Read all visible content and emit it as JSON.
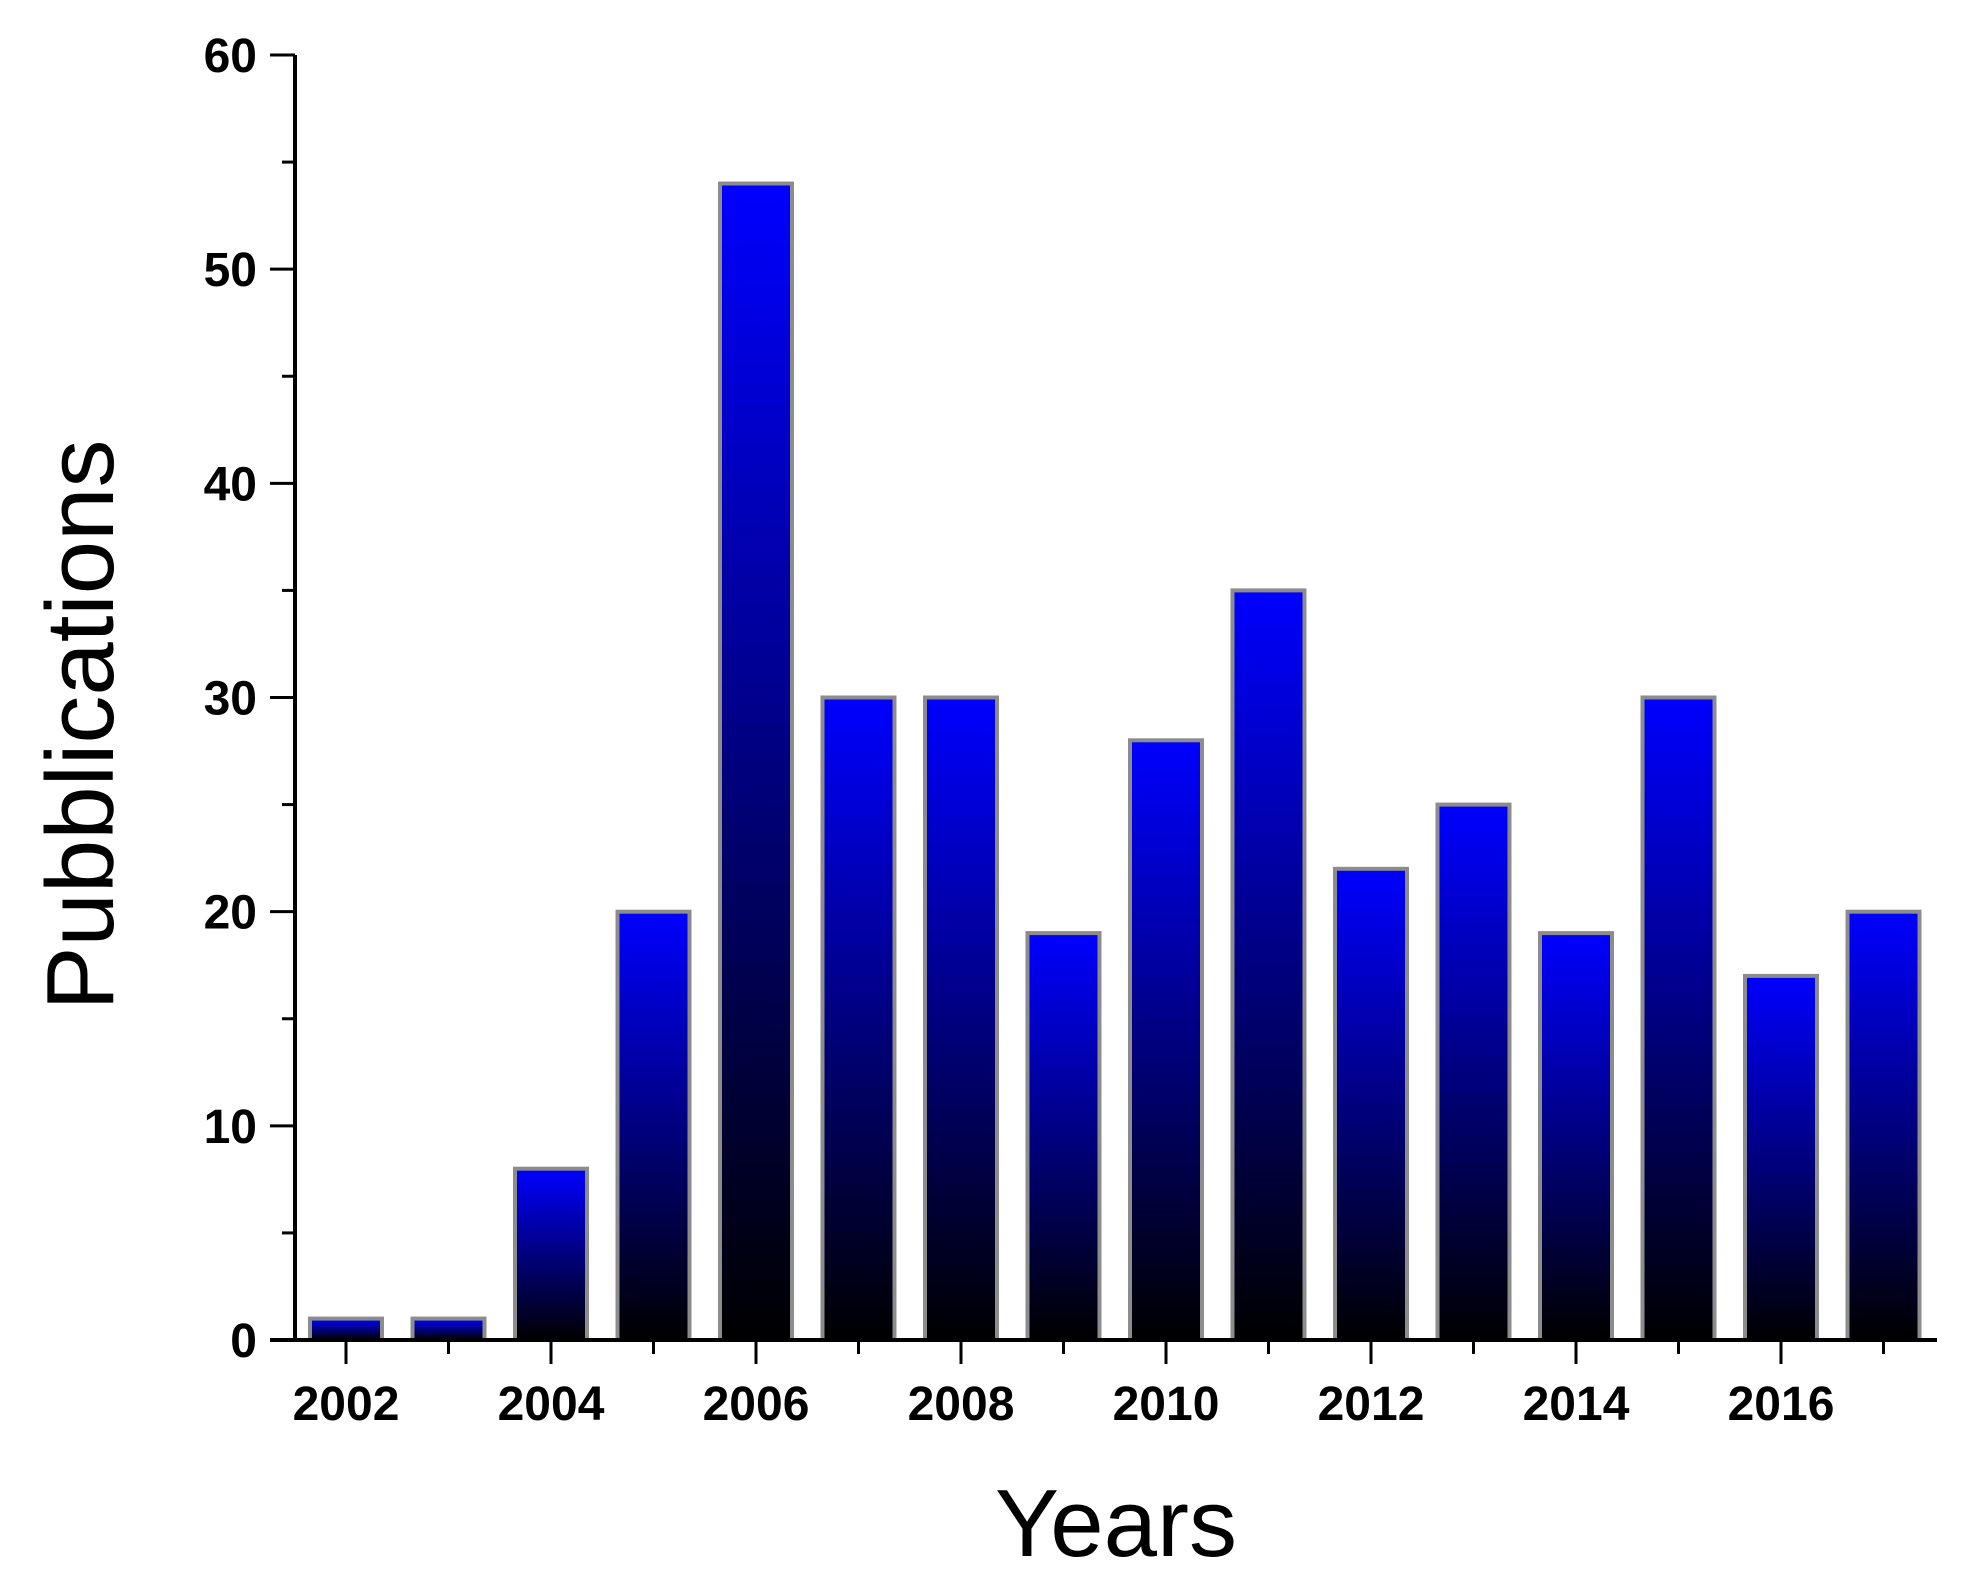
{
  "chart_data": {
    "type": "bar",
    "xlabel": "Years",
    "ylabel": "Pubblications",
    "categories": [
      "2002",
      "2003",
      "2004",
      "2005",
      "2006",
      "2007",
      "2008",
      "2009",
      "2010",
      "2011",
      "2012",
      "2013",
      "2014",
      "2015",
      "2016",
      "2017"
    ],
    "values": [
      1,
      1,
      8,
      20,
      54,
      30,
      30,
      19,
      28,
      35,
      22,
      25,
      19,
      30,
      17,
      20
    ],
    "ylim": [
      0,
      60
    ],
    "y_ticks": [
      "0",
      "10",
      "20",
      "30",
      "40",
      "50",
      "60"
    ],
    "x_tick_labels": [
      "2002",
      "2004",
      "2006",
      "2008",
      "2010",
      "2012",
      "2014",
      "2016"
    ],
    "grid": false,
    "legend": "none",
    "bar_fill": {
      "top": "#0000ff",
      "bottom": "#000000"
    },
    "bar_outline": "#8c8c8c",
    "background": "#ffffff"
  }
}
